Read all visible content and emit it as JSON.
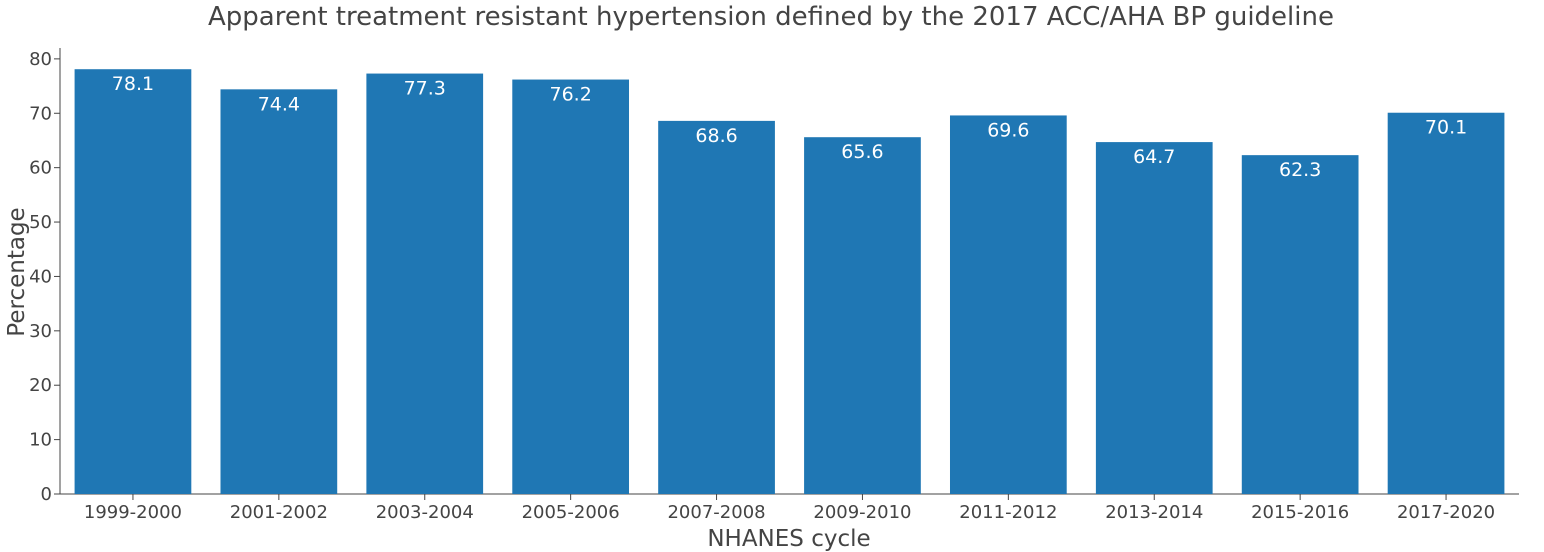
{
  "chart_data": {
    "type": "bar",
    "title": "Apparent treatment resistant hypertension defined by the 2017 ACC/AHA BP guideline",
    "xlabel": "NHANES cycle",
    "ylabel": "Percentage",
    "categories": [
      "1999-2000",
      "2001-2002",
      "2003-2004",
      "2005-2006",
      "2007-2008",
      "2009-2010",
      "2011-2012",
      "2013-2014",
      "2015-2016",
      "2017-2020"
    ],
    "values": [
      78.1,
      74.4,
      77.3,
      76.2,
      68.6,
      65.6,
      69.6,
      64.7,
      62.3,
      70.1
    ],
    "value_labels": [
      "78.1",
      "74.4",
      "77.3",
      "76.2",
      "68.6",
      "65.6",
      "69.6",
      "64.7",
      "62.3",
      "70.1"
    ],
    "ylim": [
      0,
      82
    ],
    "yticks": [
      0,
      10,
      20,
      30,
      40,
      50,
      60,
      70,
      80
    ],
    "ytick_labels": [
      "0",
      "10",
      "20",
      "30",
      "40",
      "50",
      "60",
      "70",
      "80"
    ],
    "grid": false,
    "legend": "none",
    "bar_color": "#1f77b4"
  }
}
